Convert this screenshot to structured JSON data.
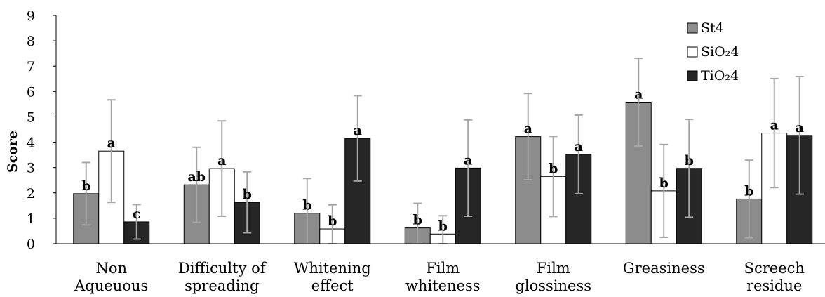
{
  "chart_data": {
    "type": "bar",
    "ylabel": "Score",
    "xlabel": "",
    "ylim": [
      0,
      9
    ],
    "yticks": [
      "0",
      "1",
      "2",
      "3",
      "4",
      "5",
      "6",
      "7",
      "8",
      "9"
    ],
    "grid": false,
    "legend_position": "top-right",
    "categories": [
      [
        "Non",
        "Aqueuous"
      ],
      [
        "Difficulty of",
        "spreading"
      ],
      [
        "Whitening",
        "effect"
      ],
      [
        "Film",
        "whiteness"
      ],
      [
        "Film",
        "glossiness"
      ],
      [
        "Greasiness"
      ],
      [
        "Screech",
        "residue"
      ]
    ],
    "series": [
      {
        "name": "St4",
        "color": "#8c8c8c",
        "values": [
          1.97,
          2.32,
          1.2,
          0.62,
          4.22,
          5.58,
          1.76
        ],
        "error": [
          1.23,
          1.48,
          1.37,
          0.97,
          1.7,
          1.73,
          1.53
        ],
        "letters": [
          "b",
          "ab",
          "b",
          "b",
          "a",
          "a",
          "b"
        ]
      },
      {
        "name": "SiO₂4",
        "color": "#ffffff",
        "values": [
          3.65,
          2.96,
          0.58,
          0.38,
          2.65,
          2.08,
          4.36
        ],
        "error": [
          2.02,
          1.88,
          0.95,
          0.72,
          1.58,
          1.83,
          2.15
        ],
        "letters": [
          "a",
          "a",
          "b",
          "b",
          "b",
          "b",
          "a"
        ]
      },
      {
        "name": "TiO₂4",
        "color": "#262626",
        "values": [
          0.86,
          1.63,
          4.15,
          2.98,
          3.52,
          2.97,
          4.27
        ],
        "error": [
          0.68,
          1.2,
          1.68,
          1.9,
          1.55,
          1.93,
          2.32
        ],
        "letters": [
          "c",
          "b",
          "a",
          "a",
          "a",
          "b",
          "a"
        ]
      }
    ]
  }
}
